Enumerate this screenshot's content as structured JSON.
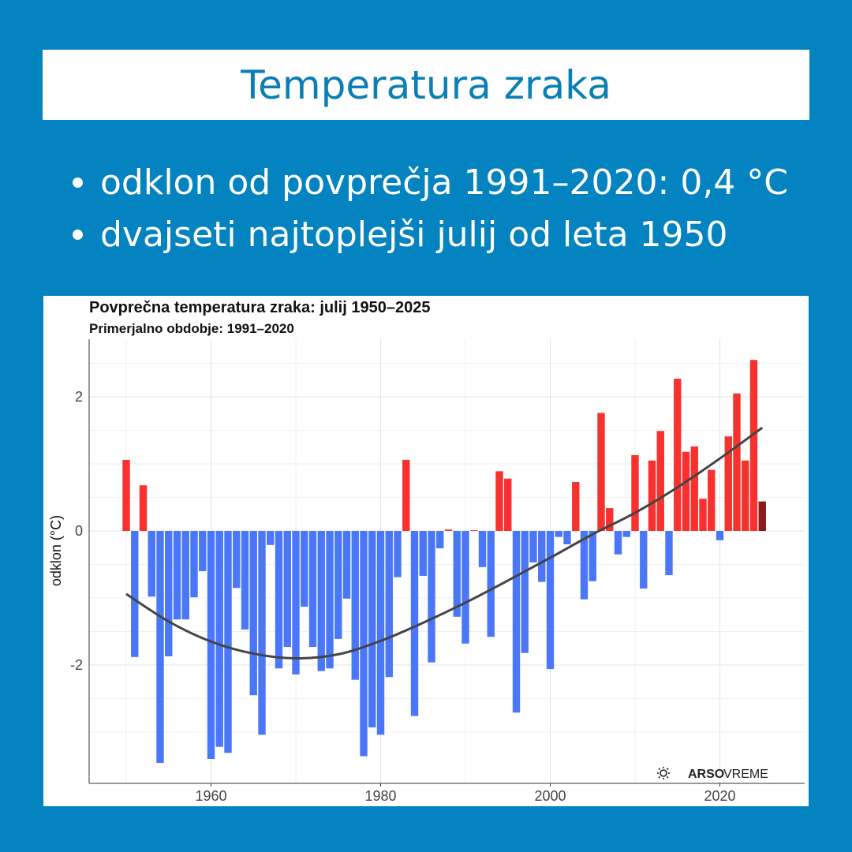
{
  "header": {
    "title": "Temperatura zraka"
  },
  "bullets": [
    "odklon od povprečja 1991–2020: 0,4 °C",
    "dvajseti najtoplejši julij od leta 1950"
  ],
  "logo": {
    "text_bold": "ARSO",
    "text": "VREME",
    "icon": "sun-icon"
  },
  "chart_data": {
    "type": "bar",
    "title": "Povprečna temperatura zraka: julij 1950–2025",
    "subtitle": "Primerjalno obdobje: 1991–2020",
    "xlabel": "",
    "ylabel": "odklon (°C)",
    "x_ticks": [
      1960,
      1980,
      2000,
      2020
    ],
    "y_ticks": [
      -2,
      0,
      2
    ],
    "ylim": [
      -3.75,
      2.85
    ],
    "xlim": [
      1948,
      2027
    ],
    "grid": true,
    "colors": {
      "positive": "#f8312f",
      "negative": "#4a77f8",
      "latest": "#8b1a1a",
      "trend": "#444444"
    },
    "x": [
      1950,
      1951,
      1952,
      1953,
      1954,
      1955,
      1956,
      1957,
      1958,
      1959,
      1960,
      1961,
      1962,
      1963,
      1964,
      1965,
      1966,
      1967,
      1968,
      1969,
      1970,
      1971,
      1972,
      1973,
      1974,
      1975,
      1976,
      1977,
      1978,
      1979,
      1980,
      1981,
      1982,
      1983,
      1984,
      1985,
      1986,
      1987,
      1988,
      1989,
      1990,
      1991,
      1992,
      1993,
      1994,
      1995,
      1996,
      1997,
      1998,
      1999,
      2000,
      2001,
      2002,
      2003,
      2004,
      2005,
      2006,
      2007,
      2008,
      2009,
      2010,
      2011,
      2012,
      2013,
      2014,
      2015,
      2016,
      2017,
      2018,
      2019,
      2020,
      2021,
      2022,
      2023,
      2024,
      2025
    ],
    "values": [
      1.06,
      -1.88,
      0.68,
      -0.98,
      -3.46,
      -1.87,
      -1.32,
      -1.32,
      -0.99,
      -0.6,
      -3.4,
      -3.22,
      -3.31,
      -0.85,
      -1.47,
      -2.45,
      -3.04,
      -0.21,
      -2.05,
      -1.73,
      -2.14,
      -1.13,
      -1.73,
      -2.09,
      -2.05,
      -1.61,
      -1.01,
      -2.22,
      -3.36,
      -2.93,
      -3.04,
      -2.18,
      -0.69,
      1.06,
      -2.76,
      -0.67,
      -1.96,
      -0.26,
      0.02,
      -1.28,
      -1.68,
      0.01,
      -0.54,
      -1.58,
      0.89,
      0.78,
      -2.71,
      -1.82,
      -0.47,
      -0.76,
      -2.06,
      -0.09,
      -0.2,
      0.73,
      -1.02,
      -0.75,
      1.76,
      0.34,
      -0.35,
      -0.09,
      1.13,
      -0.86,
      1.05,
      1.49,
      -0.66,
      2.27,
      1.18,
      1.26,
      0.48,
      0.91,
      -0.14,
      1.41,
      2.05,
      1.05,
      2.55,
      0.44
    ],
    "trend": {
      "x": [
        1950,
        1955,
        1960,
        1965,
        1970,
        1975,
        1980,
        1985,
        1990,
        1995,
        2000,
        2005,
        2010,
        2015,
        2020,
        2025
      ],
      "y": [
        -0.94,
        -1.35,
        -1.65,
        -1.83,
        -1.9,
        -1.84,
        -1.64,
        -1.37,
        -1.07,
        -0.74,
        -0.4,
        -0.05,
        0.27,
        0.65,
        1.08,
        1.54
      ]
    }
  }
}
